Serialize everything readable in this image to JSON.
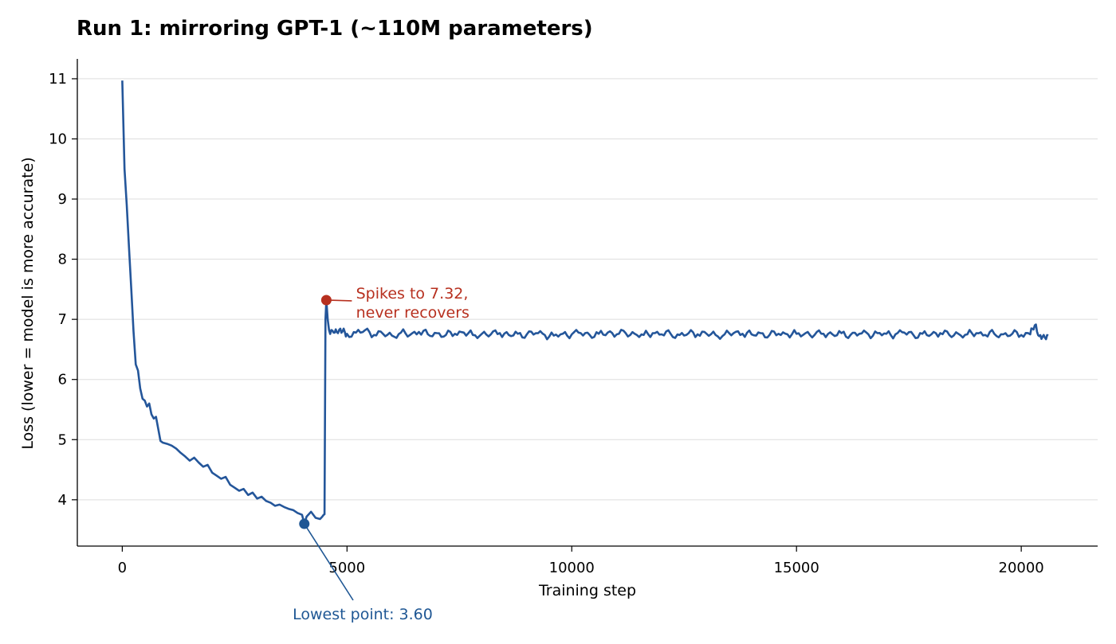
{
  "chart_data": {
    "type": "line",
    "title": "Run 1: mirroring GPT-1 (~110M parameters)",
    "xlabel": "Training step",
    "ylabel": "Loss (lower = model is more accurate)",
    "xlim": [
      -1000,
      21700
    ],
    "ylim": [
      3.23,
      11.33
    ],
    "xticks": [
      0,
      5000,
      10000,
      15000,
      20000
    ],
    "yticks": [
      4,
      5,
      6,
      7,
      8,
      9,
      10,
      11
    ],
    "grid": "horizontal",
    "colors": {
      "line": "#24569a",
      "spike": "#b7301f",
      "low": "#24569a",
      "grid": "#dddddd"
    },
    "series": [
      {
        "points": [
          [
            0,
            10.97
          ],
          [
            50,
            9.5
          ],
          [
            100,
            8.9
          ],
          [
            150,
            8.2
          ],
          [
            200,
            7.5
          ],
          [
            250,
            6.8
          ],
          [
            300,
            6.25
          ],
          [
            350,
            6.15
          ],
          [
            400,
            5.85
          ],
          [
            450,
            5.68
          ],
          [
            500,
            5.65
          ],
          [
            550,
            5.55
          ],
          [
            600,
            5.6
          ],
          [
            650,
            5.42
          ],
          [
            700,
            5.35
          ],
          [
            750,
            5.38
          ],
          [
            800,
            5.18
          ],
          [
            850,
            4.98
          ],
          [
            900,
            4.95
          ],
          [
            1000,
            4.93
          ],
          [
            1100,
            4.9
          ],
          [
            1200,
            4.85
          ],
          [
            1300,
            4.78
          ],
          [
            1400,
            4.72
          ],
          [
            1500,
            4.65
          ],
          [
            1600,
            4.7
          ],
          [
            1700,
            4.62
          ],
          [
            1800,
            4.55
          ],
          [
            1900,
            4.58
          ],
          [
            2000,
            4.45
          ],
          [
            2100,
            4.4
          ],
          [
            2200,
            4.35
          ],
          [
            2300,
            4.38
          ],
          [
            2400,
            4.25
          ],
          [
            2500,
            4.2
          ],
          [
            2600,
            4.15
          ],
          [
            2700,
            4.18
          ],
          [
            2800,
            4.08
          ],
          [
            2900,
            4.12
          ],
          [
            3000,
            4.02
          ],
          [
            3100,
            4.05
          ],
          [
            3200,
            3.98
          ],
          [
            3300,
            3.95
          ],
          [
            3400,
            3.9
          ],
          [
            3500,
            3.92
          ],
          [
            3600,
            3.88
          ],
          [
            3700,
            3.85
          ],
          [
            3800,
            3.83
          ],
          [
            3900,
            3.78
          ],
          [
            4000,
            3.75
          ],
          [
            4050,
            3.6
          ],
          [
            4100,
            3.72
          ],
          [
            4200,
            3.8
          ],
          [
            4300,
            3.7
          ],
          [
            4400,
            3.68
          ],
          [
            4450,
            3.72
          ],
          [
            4480,
            3.75
          ],
          [
            4500,
            3.76
          ],
          [
            4520,
            7.0
          ],
          [
            4540,
            7.32
          ],
          [
            4570,
            7.0
          ],
          [
            4600,
            6.82
          ],
          [
            4700,
            6.78
          ],
          [
            4800,
            6.77
          ],
          [
            4900,
            6.8
          ],
          [
            5000,
            6.76
          ],
          [
            5200,
            6.78
          ],
          [
            5400,
            6.82
          ],
          [
            5600,
            6.74
          ],
          [
            5800,
            6.76
          ],
          [
            6000,
            6.73
          ],
          [
            6200,
            6.78
          ],
          [
            6400,
            6.74
          ],
          [
            6600,
            6.79
          ],
          [
            6800,
            6.75
          ],
          [
            7000,
            6.77
          ],
          [
            7200,
            6.74
          ],
          [
            7400,
            6.76
          ],
          [
            7600,
            6.78
          ],
          [
            7800,
            6.74
          ],
          [
            8000,
            6.76
          ],
          [
            8200,
            6.75
          ],
          [
            8400,
            6.77
          ],
          [
            8600,
            6.74
          ],
          [
            8800,
            6.76
          ],
          [
            9000,
            6.75
          ],
          [
            9200,
            6.77
          ],
          [
            9400,
            6.74
          ],
          [
            9600,
            6.73
          ],
          [
            9800,
            6.76
          ],
          [
            10000,
            6.75
          ],
          [
            10200,
            6.77
          ],
          [
            10400,
            6.74
          ],
          [
            10600,
            6.76
          ],
          [
            10800,
            6.78
          ],
          [
            11000,
            6.75
          ],
          [
            11200,
            6.77
          ],
          [
            11400,
            6.76
          ],
          [
            11600,
            6.74
          ],
          [
            11800,
            6.77
          ],
          [
            12000,
            6.75
          ],
          [
            12200,
            6.76
          ],
          [
            12400,
            6.74
          ],
          [
            12600,
            6.77
          ],
          [
            12800,
            6.75
          ],
          [
            13000,
            6.76
          ],
          [
            13200,
            6.74
          ],
          [
            13400,
            6.75
          ],
          [
            13600,
            6.77
          ],
          [
            13800,
            6.76
          ],
          [
            14000,
            6.75
          ],
          [
            14200,
            6.77
          ],
          [
            14400,
            6.74
          ],
          [
            14600,
            6.76
          ],
          [
            14800,
            6.75
          ],
          [
            15000,
            6.76
          ],
          [
            15200,
            6.77
          ],
          [
            15400,
            6.74
          ],
          [
            15600,
            6.76
          ],
          [
            15800,
            6.75
          ],
          [
            16000,
            6.77
          ],
          [
            16200,
            6.74
          ],
          [
            16400,
            6.76
          ],
          [
            16600,
            6.75
          ],
          [
            16800,
            6.77
          ],
          [
            17000,
            6.76
          ],
          [
            17200,
            6.75
          ],
          [
            17400,
            6.78
          ],
          [
            17600,
            6.74
          ],
          [
            17800,
            6.76
          ],
          [
            18000,
            6.75
          ],
          [
            18200,
            6.77
          ],
          [
            18400,
            6.74
          ],
          [
            18600,
            6.76
          ],
          [
            18800,
            6.75
          ],
          [
            19000,
            6.77
          ],
          [
            19200,
            6.74
          ],
          [
            19400,
            6.76
          ],
          [
            19600,
            6.75
          ],
          [
            19800,
            6.76
          ],
          [
            20000,
            6.74
          ],
          [
            20200,
            6.75
          ],
          [
            20300,
            6.9
          ],
          [
            20400,
            6.72
          ],
          [
            20500,
            6.74
          ],
          [
            20600,
            6.73
          ]
        ]
      }
    ],
    "annotations": [
      {
        "text_lines": [
          "Spikes to 7.32,",
          "never recovers"
        ],
        "point": [
          4540,
          7.32
        ],
        "text_at": [
          5200,
          7.2
        ],
        "color": "#b7301f"
      },
      {
        "text_lines": [
          "Lowest point: 3.60"
        ],
        "point": [
          4050,
          3.6
        ],
        "text_at": [
          5300,
          2.6
        ],
        "color": "#1f5794"
      }
    ]
  }
}
